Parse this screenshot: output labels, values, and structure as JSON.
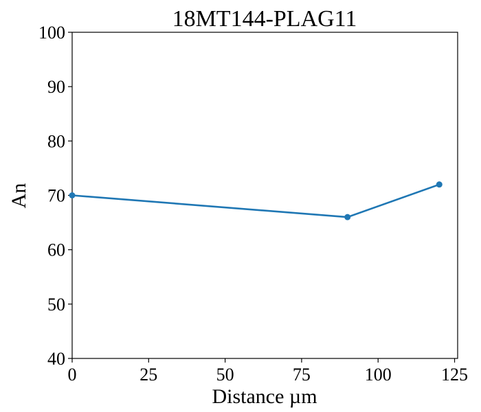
{
  "chart_data": {
    "type": "line",
    "title": "18MT144-PLAG11",
    "xlabel": "Distance µm",
    "ylabel": "An",
    "xlim": [
      0,
      126
    ],
    "ylim": [
      40,
      100
    ],
    "xticks": [
      0,
      25,
      50,
      75,
      100,
      125
    ],
    "yticks": [
      40,
      50,
      60,
      70,
      80,
      90,
      100
    ],
    "grid": false,
    "series": [
      {
        "x": [
          0,
          90,
          120
        ],
        "y": [
          70,
          66,
          72
        ],
        "color": "#1f77b4",
        "marker": "circle"
      }
    ]
  }
}
